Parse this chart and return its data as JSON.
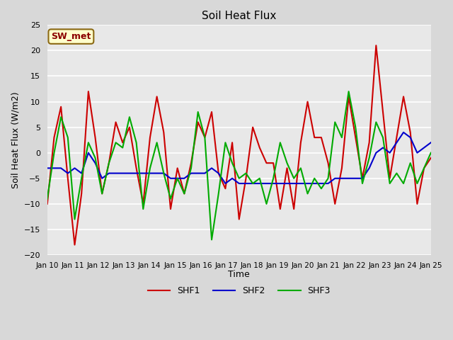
{
  "title": "Soil Heat Flux",
  "xlabel": "Time",
  "ylabel": "Soil Heat Flux (W/m2)",
  "ylim": [
    -20,
    25
  ],
  "xlim": [
    0,
    15
  ],
  "x_tick_labels": [
    "Jan 10",
    "Jan 11",
    "Jan 12",
    "Jan 13",
    "Jan 14",
    "Jan 15",
    "Jan 16",
    "Jan 17",
    "Jan 18",
    "Jan 19",
    "Jan 20",
    "Jan 21",
    "Jan 22",
    "Jan 23",
    "Jan 24",
    "Jan 25"
  ],
  "annotation_text": "SW_met",
  "annotation_color": "#8B0000",
  "annotation_bg": "#FFFFCC",
  "annotation_border": "#8B6914",
  "shf1_color": "#CC0000",
  "shf2_color": "#0000CC",
  "shf3_color": "#00AA00",
  "line_width": 1.5,
  "fig_bg_color": "#D8D8D8",
  "plot_bg_color": "#E8E8E8",
  "grid_color": "#FFFFFF",
  "shf1": [
    -10,
    3,
    9,
    -5,
    -18,
    -8,
    12,
    3,
    -8,
    -2,
    6,
    2,
    5,
    -3,
    -10,
    3,
    11,
    4,
    -11,
    -3,
    -8,
    -2,
    6,
    3,
    8,
    -4,
    -7,
    2,
    -13,
    -5,
    5,
    1,
    -2,
    -2,
    -11,
    -3,
    -11,
    2,
    10,
    3,
    3,
    -2,
    -10,
    -3,
    11,
    3,
    -5,
    2,
    21,
    8,
    -5,
    3,
    11,
    4,
    -10,
    -3,
    -1
  ],
  "shf2": [
    -3,
    -3,
    -3,
    -4,
    -3,
    -4,
    0,
    -2,
    -5,
    -4,
    -4,
    -4,
    -4,
    -4,
    -4,
    -4,
    -4,
    -4,
    -5,
    -5,
    -5,
    -4,
    -4,
    -4,
    -3,
    -4,
    -6,
    -5,
    -6,
    -6,
    -6,
    -6,
    -6,
    -6,
    -6,
    -6,
    -6,
    -6,
    -6,
    -6,
    -6,
    -6,
    -5,
    -5,
    -5,
    -5,
    -5,
    -3,
    0,
    1,
    0,
    2,
    4,
    3,
    0,
    1,
    2
  ],
  "shf3": [
    -9,
    0,
    7,
    3,
    -13,
    -5,
    2,
    -1,
    -8,
    -2,
    2,
    1,
    7,
    2,
    -11,
    -3,
    2,
    -4,
    -9,
    -5,
    -8,
    -3,
    8,
    3,
    -17,
    -8,
    2,
    -2,
    -5,
    -4,
    -6,
    -5,
    -10,
    -5,
    2,
    -2,
    -5,
    -3,
    -8,
    -5,
    -7,
    -5,
    6,
    3,
    12,
    5,
    -6,
    -1,
    6,
    3,
    -6,
    -4,
    -6,
    -2,
    -6,
    -3,
    0
  ]
}
